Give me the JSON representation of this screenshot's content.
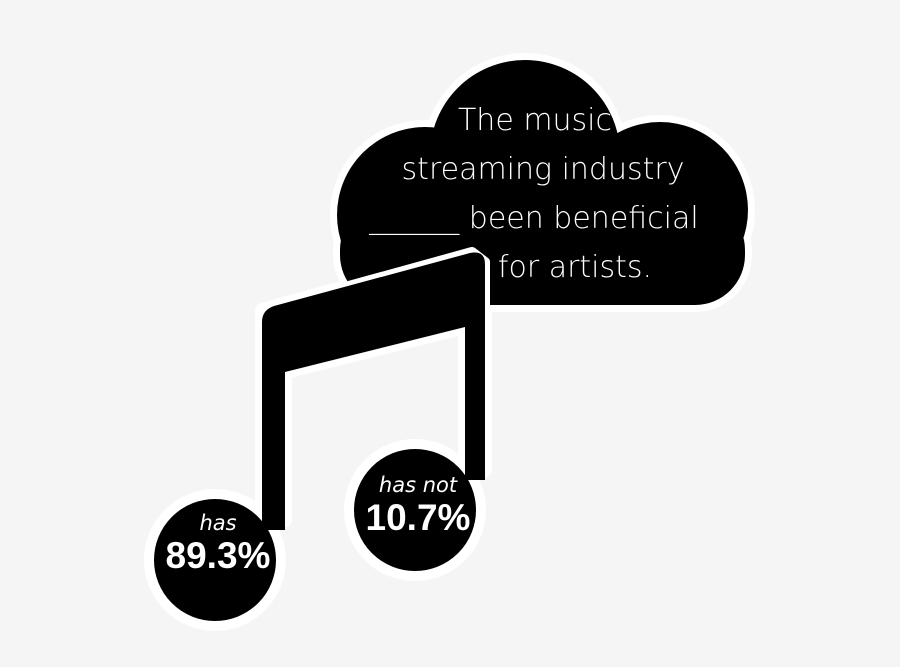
{
  "question": {
    "lines": [
      "The music",
      "streaming industry",
      "______ been beneficial",
      "for artists."
    ]
  },
  "answers": [
    {
      "label": "has",
      "value": "89.3%"
    },
    {
      "label": "has not",
      "value": "10.7%"
    }
  ],
  "colors": {
    "background": "#f5f5f5",
    "shape": "#000000",
    "outline": "#ffffff",
    "text": "#ffffff"
  }
}
